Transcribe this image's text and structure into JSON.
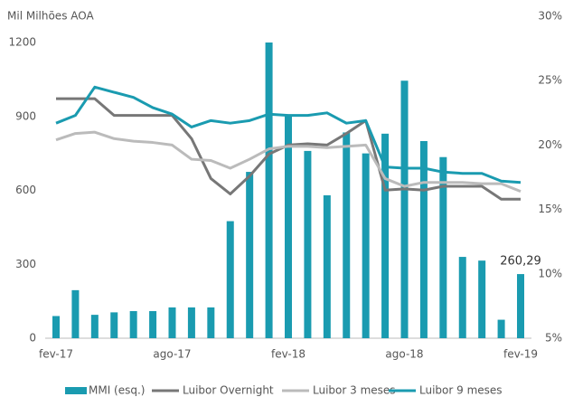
{
  "chart_data": {
    "type": "bar",
    "ylabel": "Mil Milhões AOA",
    "categories": [
      "fev-17",
      null,
      null,
      null,
      null,
      null,
      "ago-17",
      null,
      null,
      null,
      null,
      null,
      "fev-18",
      null,
      null,
      null,
      null,
      null,
      "ago-18",
      null,
      null,
      null,
      null,
      null,
      "fev-19"
    ],
    "ylim": [
      0,
      1200
    ],
    "yticks": [
      0,
      300,
      600,
      900,
      1200
    ],
    "y2lim": [
      5,
      30
    ],
    "y2ticks": [
      {
        "value": 5,
        "label": "5%"
      },
      {
        "value": 10,
        "label": "10%"
      },
      {
        "value": 15,
        "label": "15%"
      },
      {
        "value": 20,
        "label": "20%"
      },
      {
        "value": 25,
        "label": "25%"
      },
      {
        "value": 30,
        "label": "30%"
      }
    ],
    "series": [
      {
        "name": "MMI (esq.)",
        "type": "bar",
        "color": "#1a9bb0",
        "values": [
          90,
          195,
          95,
          105,
          110,
          110,
          125,
          125,
          125,
          475,
          675,
          1200,
          905,
          760,
          580,
          835,
          750,
          830,
          1045,
          800,
          735,
          330,
          315,
          75,
          260.29
        ],
        "value_labels": [
          null,
          null,
          null,
          null,
          null,
          null,
          null,
          null,
          null,
          null,
          null,
          null,
          null,
          null,
          null,
          null,
          null,
          null,
          null,
          null,
          null,
          null,
          null,
          null,
          "260,29"
        ]
      },
      {
        "name": "Luibor Overnight",
        "type": "line",
        "axis": "y2",
        "color": "#777777",
        "values": [
          23.6,
          23.6,
          23.6,
          22.3,
          22.3,
          22.3,
          22.3,
          20.5,
          17.4,
          16.2,
          17.6,
          19.3,
          20.0,
          20.1,
          20.0,
          20.9,
          21.9,
          16.5,
          16.6,
          16.5,
          16.8,
          16.8,
          16.8,
          15.8,
          15.8
        ]
      },
      {
        "name": "Luibor 3 meses",
        "type": "line",
        "axis": "y2",
        "color": "#bbbbbb",
        "values": [
          20.4,
          20.9,
          21.0,
          20.5,
          20.3,
          20.2,
          20.0,
          18.9,
          18.8,
          18.2,
          18.9,
          19.7,
          19.9,
          19.9,
          19.8,
          19.9,
          20.0,
          17.4,
          16.8,
          17.1,
          17.1,
          17.1,
          17.0,
          17.0,
          16.4
        ]
      },
      {
        "name": "Luibor 9 meses",
        "type": "line",
        "axis": "y2",
        "color": "#1a9bb0",
        "values": [
          21.7,
          22.3,
          24.5,
          24.1,
          23.7,
          22.9,
          22.4,
          21.4,
          21.9,
          21.7,
          21.9,
          22.4,
          22.3,
          22.3,
          22.5,
          21.7,
          21.9,
          18.3,
          18.2,
          18.2,
          17.9,
          17.8,
          17.8,
          17.2,
          17.1
        ]
      }
    ]
  }
}
